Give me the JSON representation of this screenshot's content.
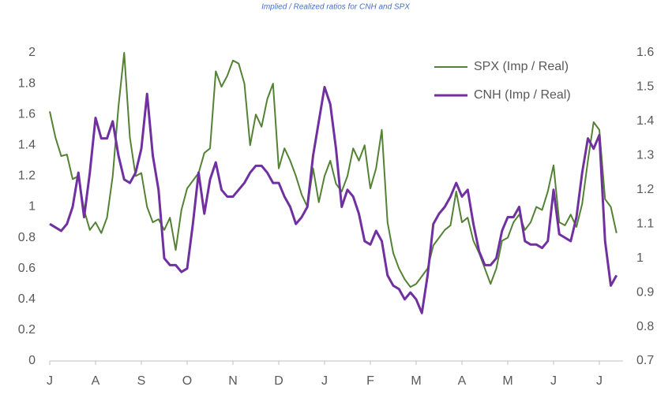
{
  "chart_data": {
    "type": "line",
    "title": "Implied / Realized ratios for CNH and SPX",
    "categories": [
      "J",
      null,
      null,
      null,
      null,
      null,
      null,
      null,
      "A",
      null,
      null,
      null,
      null,
      null,
      null,
      null,
      "S",
      null,
      null,
      null,
      null,
      null,
      null,
      null,
      "O",
      null,
      null,
      null,
      null,
      null,
      null,
      null,
      "N",
      null,
      null,
      null,
      null,
      null,
      null,
      null,
      "D",
      null,
      null,
      null,
      null,
      null,
      null,
      null,
      "J",
      null,
      null,
      null,
      null,
      null,
      null,
      null,
      "F",
      null,
      null,
      null,
      null,
      null,
      null,
      null,
      "M",
      null,
      null,
      null,
      null,
      null,
      null,
      null,
      "A",
      null,
      null,
      null,
      null,
      null,
      null,
      null,
      "M",
      null,
      null,
      null,
      null,
      null,
      null,
      null,
      "J",
      null,
      null,
      null,
      null,
      null,
      null,
      null,
      "J",
      null,
      null,
      null
    ],
    "series": [
      {
        "name": "SPX (Imp / Real)",
        "color": "#548235",
        "axis": "y",
        "values": [
          1.62,
          1.45,
          1.33,
          1.34,
          1.18,
          1.2,
          0.98,
          0.85,
          0.9,
          0.83,
          0.93,
          1.2,
          1.65,
          2.0,
          1.45,
          1.2,
          1.22,
          1.0,
          0.9,
          0.92,
          0.85,
          0.93,
          0.72,
          0.98,
          1.12,
          1.17,
          1.22,
          1.35,
          1.38,
          1.88,
          1.78,
          1.85,
          1.95,
          1.93,
          1.8,
          1.4,
          1.6,
          1.52,
          1.7,
          1.8,
          1.25,
          1.38,
          1.3,
          1.2,
          1.08,
          1.0,
          1.25,
          1.03,
          1.2,
          1.3,
          1.15,
          1.1,
          1.2,
          1.38,
          1.3,
          1.4,
          1.12,
          1.25,
          1.5,
          0.9,
          0.7,
          0.6,
          0.53,
          0.48,
          0.5,
          0.55,
          0.6,
          0.75,
          0.8,
          0.85,
          0.88,
          1.1,
          0.9,
          0.93,
          0.78,
          0.7,
          0.6,
          0.5,
          0.6,
          0.78,
          0.8,
          0.9,
          0.95,
          0.85,
          0.9,
          1.0,
          0.98,
          1.1,
          1.27,
          0.9,
          0.88,
          0.95,
          0.87,
          1.02,
          1.3,
          1.55,
          1.5,
          1.05,
          1.0,
          0.83
        ]
      },
      {
        "name": "CNH (Imp / Real)",
        "color": "#7030a0",
        "axis": "y2",
        "values": [
          1.1,
          1.09,
          1.08,
          1.1,
          1.15,
          1.25,
          1.12,
          1.25,
          1.41,
          1.35,
          1.35,
          1.4,
          1.3,
          1.23,
          1.22,
          1.25,
          1.32,
          1.48,
          1.3,
          1.2,
          1.0,
          0.98,
          0.98,
          0.96,
          0.97,
          1.1,
          1.25,
          1.13,
          1.23,
          1.28,
          1.2,
          1.18,
          1.18,
          1.2,
          1.22,
          1.25,
          1.27,
          1.27,
          1.25,
          1.22,
          1.22,
          1.18,
          1.15,
          1.1,
          1.12,
          1.15,
          1.3,
          1.4,
          1.5,
          1.45,
          1.32,
          1.15,
          1.2,
          1.18,
          1.13,
          1.05,
          1.04,
          1.08,
          1.05,
          0.95,
          0.92,
          0.91,
          0.88,
          0.9,
          0.88,
          0.84,
          0.95,
          1.1,
          1.13,
          1.15,
          1.18,
          1.22,
          1.18,
          1.2,
          1.1,
          1.02,
          0.98,
          0.98,
          1.0,
          1.08,
          1.12,
          1.12,
          1.15,
          1.05,
          1.04,
          1.04,
          1.03,
          1.05,
          1.2,
          1.07,
          1.06,
          1.05,
          1.12,
          1.25,
          1.35,
          1.32,
          1.36,
          1.05,
          0.92,
          0.95
        ]
      }
    ],
    "ylim": [
      0,
      2
    ],
    "yticks": [
      0,
      0.2,
      0.4,
      0.6,
      0.8,
      1,
      1.2,
      1.4,
      1.6,
      1.8,
      2
    ],
    "y2lim": [
      0.7,
      1.6
    ],
    "y2ticks": [
      0.7,
      0.8,
      0.9,
      1,
      1.1,
      1.2,
      1.3,
      1.4,
      1.5,
      1.6
    ],
    "legend": "top-right"
  }
}
